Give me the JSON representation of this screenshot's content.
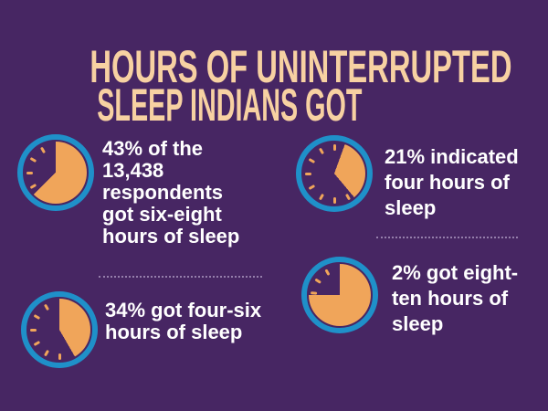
{
  "title": {
    "line1": "HOURS OF UNINTERRUPTED",
    "line2": "SLEEP INDIANS GOT"
  },
  "colors": {
    "background": "#472663",
    "title_text": "#f7d1a2",
    "body_text": "#ffffff",
    "clock_ring": "#1f90c9",
    "clock_fill": "#f0a55a",
    "separator": "#bfaed2"
  },
  "stats": [
    {
      "id": "six-eight-hours",
      "percent": 43,
      "text": "43% of the\n13,438\nrespondents\ngot six-eight\nhours of sleep",
      "clock": {
        "start_deg": 0,
        "end_deg": 225,
        "ticks_deg": [
          240,
          270,
          300,
          330
        ]
      }
    },
    {
      "id": "four-hours",
      "percent": 21,
      "text": "21% indicated\nfour hours of\nsleep",
      "clock": {
        "start_deg": 20,
        "end_deg": 140,
        "ticks_deg": [
          0,
          150,
          180,
          210,
          240,
          270,
          300,
          330
        ]
      }
    },
    {
      "id": "four-six-hours",
      "percent": 34,
      "text": "34% got four-six\nhours of sleep",
      "clock": {
        "start_deg": 0,
        "end_deg": 150,
        "ticks_deg": [
          180,
          210,
          240,
          270,
          300,
          330
        ]
      }
    },
    {
      "id": "eight-ten-hours",
      "percent": 2,
      "text": "2% got eight-\nten hours of\nsleep",
      "clock": {
        "start_deg": 0,
        "end_deg": 270,
        "ticks_deg": [
          275,
          303,
          331
        ]
      }
    }
  ],
  "chart_data": {
    "type": "pie",
    "title": "HOURS OF UNINTERRUPTED SLEEP INDIANS GOT",
    "categories": [
      "six-eight hours of sleep",
      "four-six hours of sleep",
      "four hours of sleep",
      "eight-ten hours of sleep"
    ],
    "values": [
      43,
      34,
      21,
      2
    ],
    "total_respondents": "13,438",
    "unit": "percent of respondents",
    "legend_position": "none",
    "notes": "Four clock-style pie icons on a purple infographic; each stat paired with an orange pie wedge inside a blue clock ring."
  }
}
